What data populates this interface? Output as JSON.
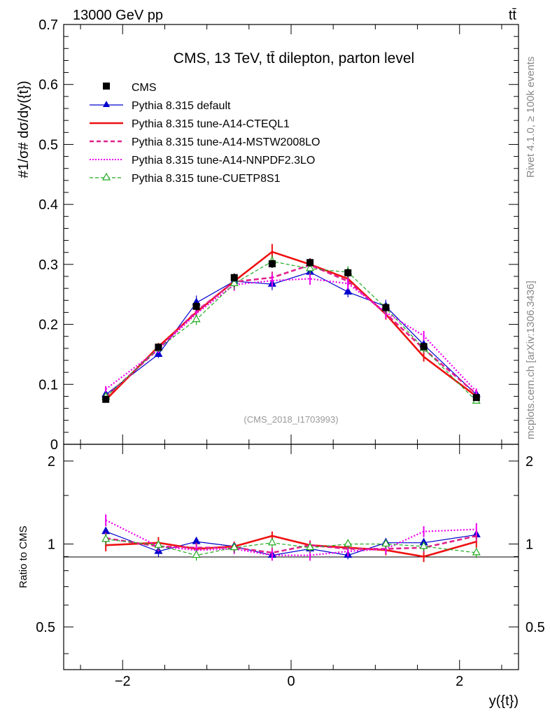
{
  "header": {
    "left": "13000 GeV pp",
    "right": "tt̄"
  },
  "side_labels": {
    "rivet": "Rivet 4.1.0, ≥ 100k events",
    "mcplots": "mcplots.cern.ch [arXiv:1306.3436]"
  },
  "analysis_id": "(CMS_2018_I1703993)",
  "colors": {
    "data": "#000000",
    "default": "#0000cc",
    "cteql1": "#ee1111",
    "mstw": "#e0208c",
    "nnpdf": "#ee00ee",
    "cuetp8s1": "#22aa22"
  },
  "chart_data": [
    {
      "type": "line",
      "title": "CMS, 13 TeV, tt̄ dilepton, parton level",
      "ylabel": "#1/σ# dσ/dy({t})",
      "xlabel": "",
      "xlim": [
        -2.7,
        2.7
      ],
      "ylim": [
        0,
        0.7
      ],
      "yticks": [
        0,
        0.1,
        0.2,
        0.3,
        0.4,
        0.5,
        0.6,
        0.7
      ],
      "ytick_labels": [
        "0",
        "0.1",
        "0.2",
        "0.3",
        "0.4",
        "0.5",
        "0.6",
        "0.7"
      ],
      "x": [
        -2.2,
        -1.575,
        -1.125,
        -0.675,
        -0.225,
        0.225,
        0.675,
        1.125,
        1.575,
        2.2
      ],
      "series": [
        {
          "name": "CMS",
          "key": "data",
          "style": "square",
          "values": [
            0.075,
            0.162,
            0.23,
            0.278,
            0.301,
            0.303,
            0.286,
            0.228,
            0.163,
            0.078
          ],
          "errors": [
            0.005,
            0.006,
            0.007,
            0.007,
            0.007,
            0.007,
            0.007,
            0.007,
            0.006,
            0.005
          ]
        },
        {
          "name": "Pythia 8.315 default",
          "key": "default",
          "style": "solid-triangle",
          "values": [
            0.083,
            0.15,
            0.236,
            0.272,
            0.267,
            0.287,
            0.254,
            0.23,
            0.166,
            0.083
          ],
          "errors": [
            0.004,
            0.006,
            0.012,
            0.009,
            0.01,
            0.009,
            0.009,
            0.011,
            0.008,
            0.005
          ]
        },
        {
          "name": "Pythia 8.315 tune-A14-CTEQL1",
          "key": "cteql1",
          "style": "thick",
          "values": [
            0.074,
            0.163,
            0.22,
            0.272,
            0.321,
            0.3,
            0.276,
            0.217,
            0.146,
            0.08
          ],
          "errors": [
            0.004,
            0.006,
            0.009,
            0.01,
            0.013,
            0.01,
            0.01,
            0.009,
            0.008,
            0.005
          ]
        },
        {
          "name": "Pythia 8.315 tune-A14-MSTW2008LO",
          "key": "mstw",
          "style": "dashed-thick",
          "values": [
            0.079,
            0.159,
            0.222,
            0.271,
            0.278,
            0.299,
            0.272,
            0.218,
            0.159,
            0.084
          ],
          "errors": [
            0.004,
            0.006,
            0.009,
            0.01,
            0.01,
            0.01,
            0.01,
            0.009,
            0.007,
            0.005
          ]
        },
        {
          "name": "Pythia 8.315 tune-A14-NNPDF2.3LO",
          "key": "nnpdf",
          "style": "dotted",
          "values": [
            0.092,
            0.158,
            0.218,
            0.266,
            0.273,
            0.276,
            0.268,
            0.22,
            0.181,
            0.088
          ],
          "errors": [
            0.005,
            0.006,
            0.009,
            0.01,
            0.01,
            0.01,
            0.01,
            0.009,
            0.008,
            0.005
          ]
        },
        {
          "name": "Pythia 8.315 tune-CUETP8S1",
          "key": "cuetp8s1",
          "style": "dashed-open-triangle",
          "values": [
            0.079,
            0.16,
            0.208,
            0.268,
            0.305,
            0.293,
            0.287,
            0.227,
            0.16,
            0.072
          ],
          "errors": [
            0.004,
            0.006,
            0.009,
            0.01,
            0.01,
            0.01,
            0.01,
            0.009,
            0.007,
            0.004
          ]
        }
      ]
    },
    {
      "type": "line",
      "title": "",
      "ylabel": "Ratio to CMS",
      "xlabel": "y({t})",
      "xlim": [
        -2.7,
        2.7
      ],
      "ylim": [
        0.35,
        2.3
      ],
      "yscale": "log",
      "yticks": [
        0.5,
        1,
        2
      ],
      "ytick_labels": [
        "0.5",
        "1",
        "2"
      ],
      "xticks": [
        -2,
        0,
        2
      ],
      "xtick_labels": [
        "−2",
        "0",
        "2"
      ],
      "x": [
        -2.2,
        -1.575,
        -1.125,
        -0.675,
        -0.225,
        0.225,
        0.675,
        1.125,
        1.575,
        2.2
      ],
      "series": [
        {
          "name": "Pythia 8.315 default",
          "key": "default",
          "style": "solid-triangle",
          "values": [
            1.11,
            0.94,
            1.02,
            0.98,
            0.91,
            0.96,
            0.91,
            1.01,
            1.01,
            1.08
          ],
          "errors": [
            0.04,
            0.04,
            0.04,
            0.03,
            0.03,
            0.03,
            0.03,
            0.04,
            0.04,
            0.05
          ]
        },
        {
          "name": "Pythia 8.315 tune-A14-CTEQL1",
          "key": "cteql1",
          "style": "thick",
          "values": [
            0.99,
            1.01,
            0.96,
            0.98,
            1.07,
            0.99,
            0.97,
            0.95,
            0.9,
            1.02
          ],
          "errors": [
            0.05,
            0.05,
            0.04,
            0.04,
            0.04,
            0.04,
            0.04,
            0.04,
            0.04,
            0.05
          ]
        },
        {
          "name": "Pythia 8.315 tune-A14-MSTW2008LO",
          "key": "mstw",
          "style": "dashed-thick",
          "values": [
            1.05,
            0.98,
            0.97,
            0.97,
            0.93,
            0.99,
            0.96,
            0.96,
            0.97,
            1.07
          ],
          "errors": [
            0.05,
            0.04,
            0.04,
            0.04,
            0.04,
            0.04,
            0.04,
            0.04,
            0.04,
            0.05
          ]
        },
        {
          "name": "Pythia 8.315 tune-A14-NNPDF2.3LO",
          "key": "nnpdf",
          "style": "dotted",
          "values": [
            1.22,
            0.98,
            0.95,
            0.96,
            0.91,
            0.91,
            0.94,
            0.96,
            1.11,
            1.13
          ],
          "errors": [
            0.06,
            0.04,
            0.04,
            0.04,
            0.04,
            0.04,
            0.04,
            0.04,
            0.05,
            0.06
          ]
        },
        {
          "name": "Pythia 8.315 tune-CUETP8S1",
          "key": "cuetp8s1",
          "style": "dashed-open-triangle",
          "values": [
            1.04,
            0.99,
            0.91,
            0.97,
            1.01,
            0.97,
            1.0,
            1.0,
            0.98,
            0.93
          ],
          "errors": [
            0.05,
            0.04,
            0.04,
            0.04,
            0.04,
            0.04,
            0.04,
            0.04,
            0.04,
            0.04
          ]
        }
      ]
    }
  ]
}
